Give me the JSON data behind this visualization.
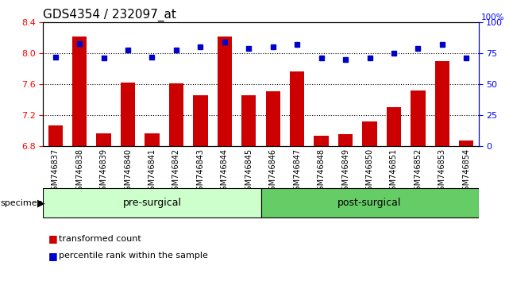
{
  "title": "GDS4354 / 232097_at",
  "categories": [
    "GSM746837",
    "GSM746838",
    "GSM746839",
    "GSM746840",
    "GSM746841",
    "GSM746842",
    "GSM746843",
    "GSM746844",
    "GSM746845",
    "GSM746846",
    "GSM746847",
    "GSM746848",
    "GSM746849",
    "GSM746850",
    "GSM746851",
    "GSM746852",
    "GSM746853",
    "GSM746854"
  ],
  "bar_values": [
    7.07,
    8.22,
    6.97,
    7.62,
    6.97,
    7.61,
    7.46,
    8.22,
    7.46,
    7.51,
    7.77,
    6.93,
    6.96,
    7.12,
    7.3,
    7.52,
    7.9,
    6.87
  ],
  "percentile_values": [
    72,
    83,
    71,
    78,
    72,
    78,
    80,
    84,
    79,
    80,
    82,
    71,
    70,
    71,
    75,
    79,
    82,
    71
  ],
  "bar_color": "#cc0000",
  "dot_color": "#0000cc",
  "ylim_left": [
    6.8,
    8.4
  ],
  "ylim_right": [
    0,
    100
  ],
  "yticks_left": [
    6.8,
    7.2,
    7.6,
    8.0,
    8.4
  ],
  "yticks_right": [
    0,
    25,
    50,
    75,
    100
  ],
  "grid_values": [
    7.2,
    7.6,
    8.0
  ],
  "groups": [
    {
      "label": "pre-surgical",
      "color": "#ccffcc",
      "start": 0,
      "end": 9
    },
    {
      "label": "post-surgical",
      "color": "#66cc66",
      "start": 9,
      "end": 18
    }
  ],
  "legend_items": [
    {
      "label": "transformed count",
      "color": "#cc0000"
    },
    {
      "label": "percentile rank within the sample",
      "color": "#0000cc"
    }
  ],
  "specimen_label": "specimen",
  "background_color": "#ffffff",
  "tick_label_fontsize": 7,
  "title_fontsize": 11,
  "pct_label": "100%"
}
